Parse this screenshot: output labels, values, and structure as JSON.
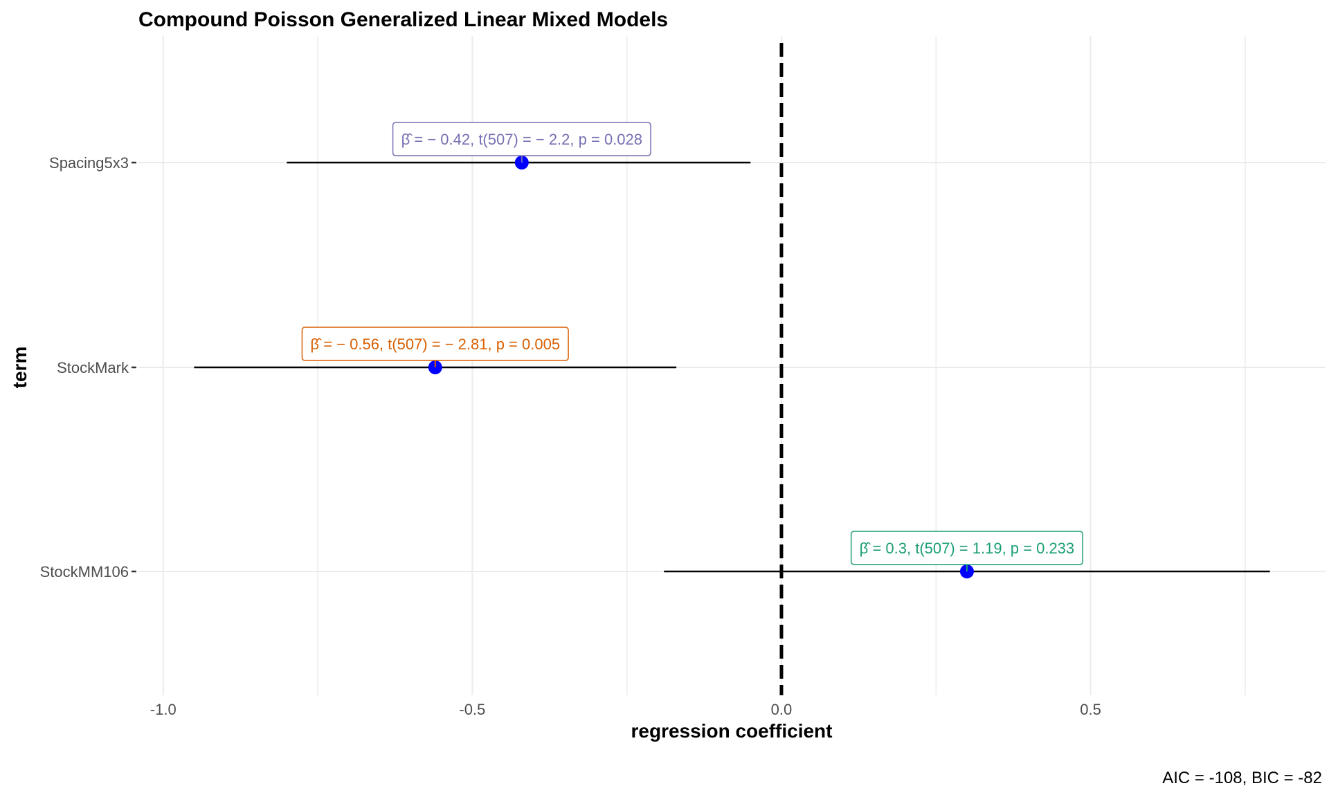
{
  "chart_data": {
    "type": "scatter",
    "title": "Compound Poisson Generalized Linear Mixed Models",
    "xlabel": "regression coefficient",
    "ylabel": "term",
    "xlim": [
      -1.04,
      0.88
    ],
    "x_ticks": [
      -1.0,
      -0.5,
      0.0,
      0.5
    ],
    "x_tick_labels": [
      "-1.0",
      "-0.5",
      "0.0",
      "0.5"
    ],
    "reference_line": 0,
    "grid": true,
    "caption": "AIC = -108, BIC = -82",
    "terms": [
      {
        "term": "Spacing5x3",
        "estimate": -0.42,
        "conf_low": -0.8,
        "conf_high": -0.05,
        "label": "β̂ = − 0.42,  t(507) = − 2.2,  p = 0.028",
        "label_color": "#7570b3"
      },
      {
        "term": "StockMark",
        "estimate": -0.56,
        "conf_low": -0.95,
        "conf_high": -0.17,
        "label": "β̂ = − 0.56,  t(507) = − 2.81,  p = 0.005",
        "label_color": "#d95f02"
      },
      {
        "term": "StockMM106",
        "estimate": 0.3,
        "conf_low": -0.19,
        "conf_high": 0.79,
        "label": "β̂ = 0.3,  t(507) = 1.19,  p = 0.233",
        "label_color": "#1b9e77"
      }
    ],
    "colors": {
      "point": "#0000ff",
      "errorbar": "#000000",
      "grid": "#ebebeb",
      "reference": "#000000"
    }
  }
}
